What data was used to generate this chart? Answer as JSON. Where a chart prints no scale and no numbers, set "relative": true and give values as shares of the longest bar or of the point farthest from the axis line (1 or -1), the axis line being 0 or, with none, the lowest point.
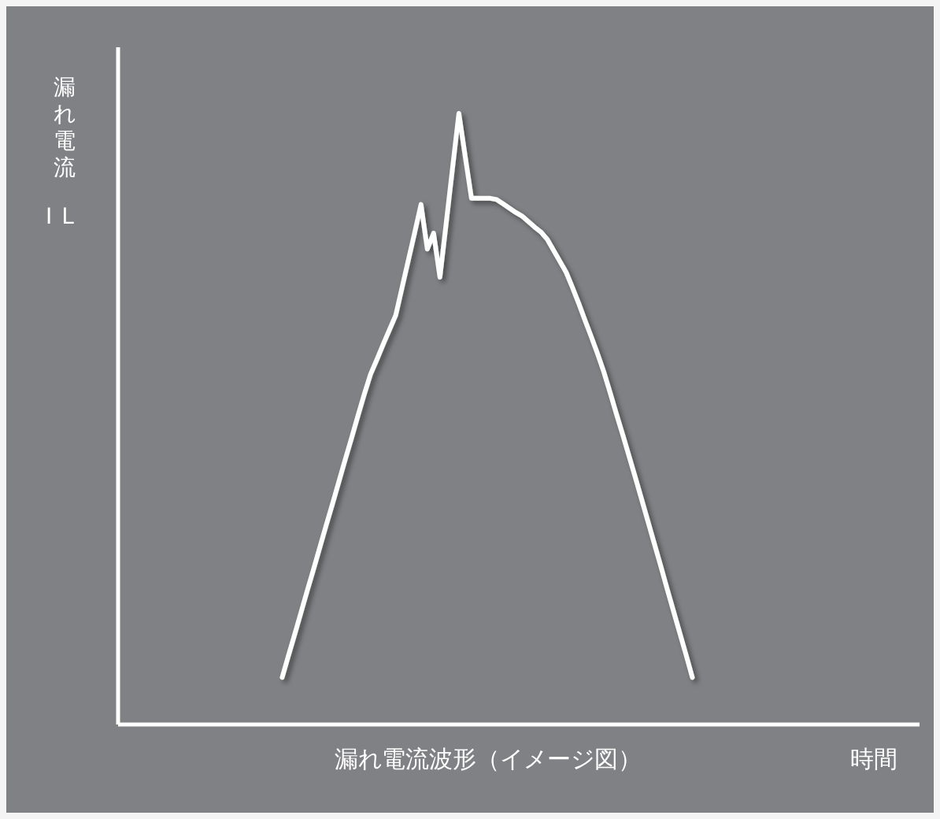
{
  "chart_data": {
    "type": "line",
    "relative": true,
    "annotations": [
      "漏れ電流 IL",
      "漏れ電流波形（イメージ図）",
      "時間"
    ],
    "categories": [
      null,
      null,
      null,
      null,
      null,
      null,
      null,
      null,
      null,
      null,
      null,
      null,
      null,
      null,
      null,
      null,
      null,
      null,
      null,
      null,
      null,
      null,
      null,
      null,
      null,
      null,
      null,
      null,
      null,
      null,
      null,
      null,
      null,
      null,
      null,
      null,
      null,
      null,
      null,
      null,
      null,
      null,
      null,
      null,
      null,
      null,
      null,
      null,
      null,
      null,
      null,
      null,
      null,
      null,
      null,
      null,
      null,
      null,
      null,
      null,
      null,
      null,
      null,
      null,
      null,
      null
    ],
    "series": [
      {
        "color": "#ffffff",
        "values": [
          0.077,
          0.113,
          0.148,
          0.184,
          0.22,
          0.255,
          0.291,
          0.327,
          0.362,
          0.398,
          0.434,
          0.469,
          0.505,
          0.54,
          0.573,
          0.597,
          0.622,
          0.646,
          0.67,
          0.715,
          0.76,
          0.805,
          0.851,
          0.778,
          0.804,
          0.732,
          0.821,
          0.911,
          1,
          0.93,
          0.861,
          0.861,
          0.861,
          0.861,
          0.859,
          0.852,
          0.845,
          0.838,
          0.832,
          0.823,
          0.814,
          0.806,
          0.794,
          0.776,
          0.758,
          0.74,
          0.715,
          0.689,
          0.661,
          0.634,
          0.606,
          0.576,
          0.542,
          0.507,
          0.473,
          0.438,
          0.403,
          0.367,
          0.331,
          0.295,
          0.259,
          0.222,
          0.186,
          0.15,
          0.114,
          0.077
        ]
      }
    ]
  }
}
